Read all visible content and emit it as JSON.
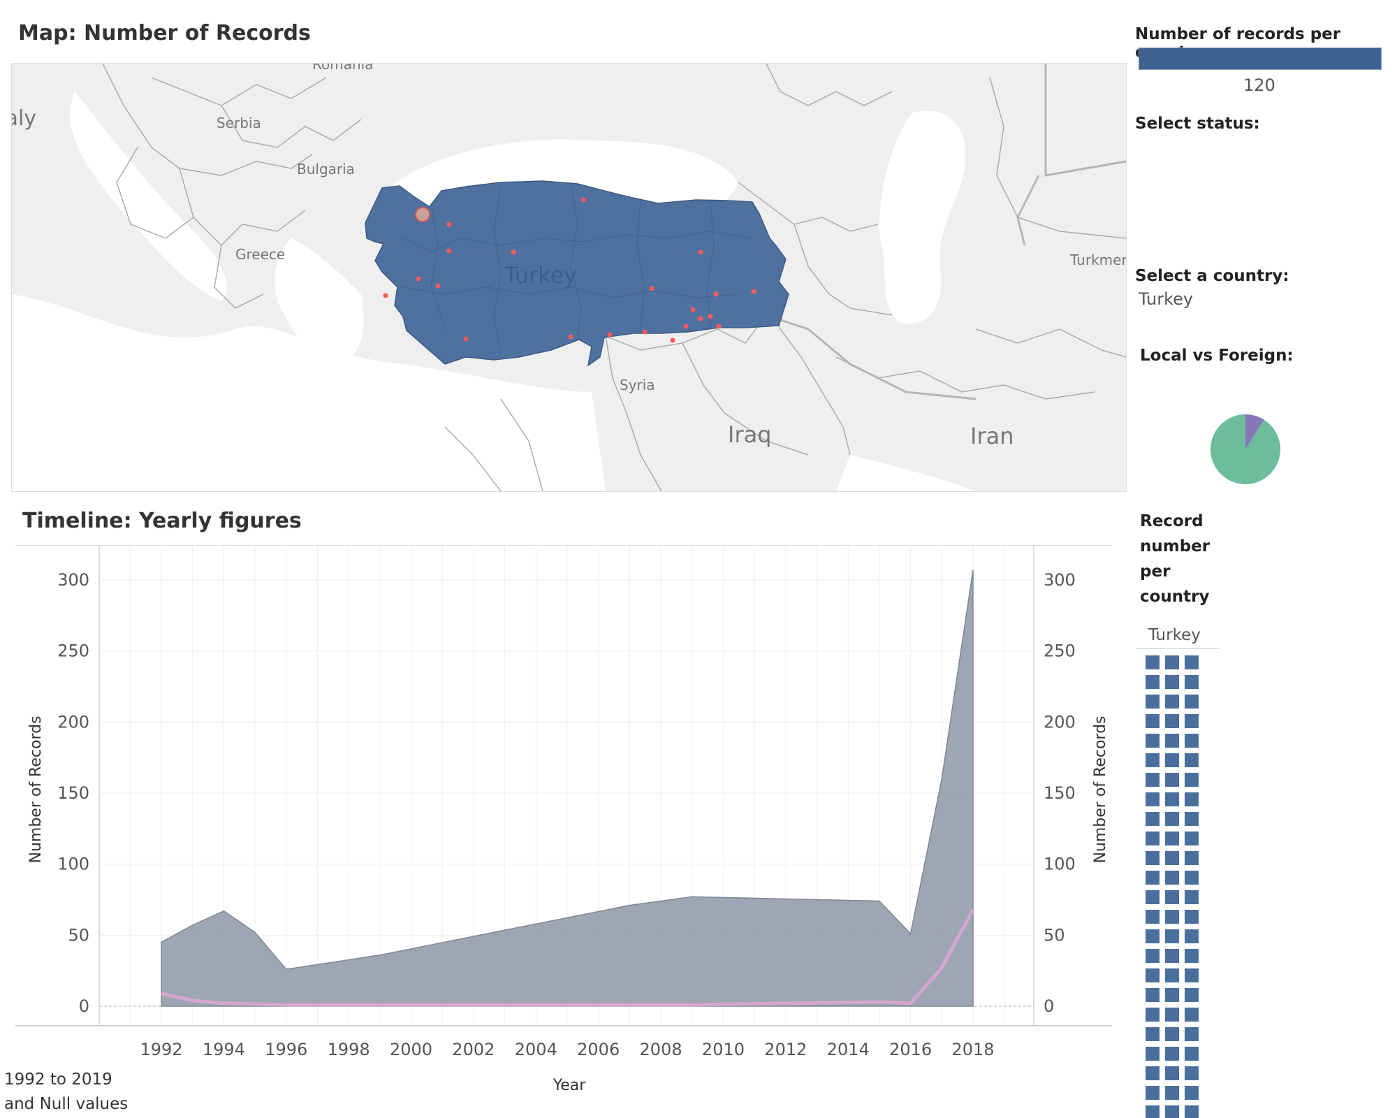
{
  "map": {
    "title": "Map: Number of Records",
    "focus_country": "Turkey",
    "country_labels": [
      "Romania",
      "Italy",
      "Serbia",
      "Bulgaria",
      "Greece",
      "Turkey",
      "Syria",
      "Iraq",
      "Iran",
      "Turkmenistan"
    ],
    "colors": {
      "land": "#e3e3e3",
      "sea": "#ffffff",
      "selected": "#4e71a0",
      "dot": "#ff5a5a",
      "border": "#a0a0a0"
    }
  },
  "legend": {
    "label": "Number of records per country:",
    "value": "120",
    "color": "#3d6290"
  },
  "filters": {
    "status_label": "Select status:",
    "country_label": "Select a country:",
    "country_value": "Turkey",
    "local_foreign_label": "Local vs Foreign:",
    "pie_colors": {
      "major": "#6dbd9c",
      "minor": "#8677b8"
    },
    "pie_minor_fraction": 0.09
  },
  "timeline": {
    "title": "Timeline: Yearly figures",
    "range_note_line1": "1992 to 2019",
    "range_note_line2": "and Null values"
  },
  "chart_data": {
    "type": "area",
    "xlabel": "Year",
    "ylabel": "Number of Records",
    "ylabel_right": "Number of Records",
    "ylim": [
      0,
      300
    ],
    "yticks": [
      0,
      50,
      100,
      150,
      200,
      250,
      300
    ],
    "xticks": [
      1992,
      1994,
      1996,
      1998,
      2000,
      2002,
      2004,
      2006,
      2008,
      2010,
      2012,
      2014,
      2016,
      2018
    ],
    "grid": true,
    "series": [
      {
        "values": [
          [
            1992,
            45
          ],
          [
            1993,
            57
          ],
          [
            1994,
            67
          ],
          [
            1995,
            52
          ],
          [
            1996,
            26
          ],
          [
            1999,
            36
          ],
          [
            2007,
            71
          ],
          [
            2009,
            77
          ],
          [
            2015,
            74
          ],
          [
            2016,
            51
          ],
          [
            2017,
            160
          ],
          [
            2018,
            307
          ]
        ],
        "color": "#8d97a6"
      },
      {
        "values": [
          [
            1992,
            9
          ],
          [
            1993,
            4
          ],
          [
            1994,
            2
          ],
          [
            1996,
            1
          ],
          [
            2009,
            1
          ],
          [
            2015,
            3
          ],
          [
            2016,
            2
          ],
          [
            2017,
            27
          ],
          [
            2018,
            68
          ]
        ],
        "color": "#d5a6cf"
      }
    ]
  },
  "record_panel": {
    "title_lines": [
      "Record",
      "number",
      "per",
      "country"
    ],
    "column_header": "Turkey",
    "cell_color": "#4a6f9c",
    "columns": 3
  }
}
